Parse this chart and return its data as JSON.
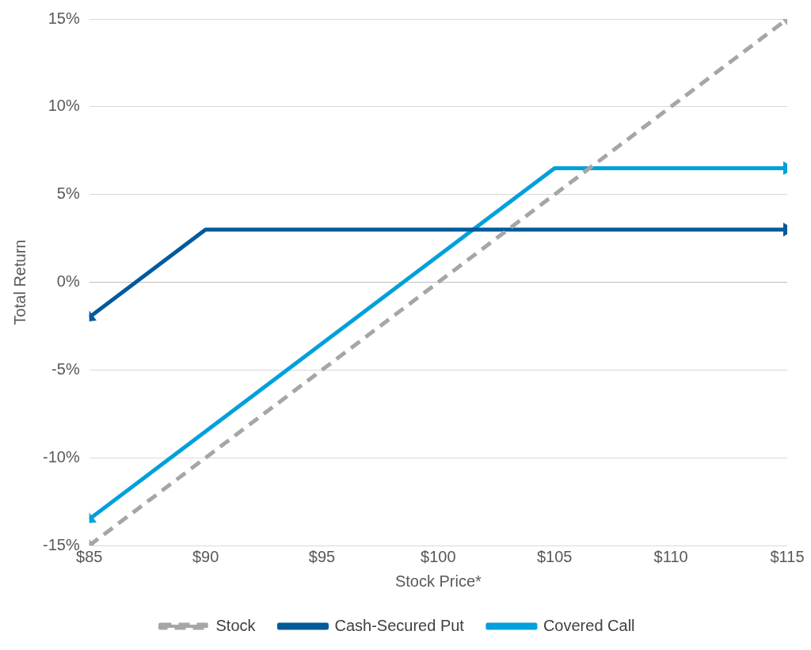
{
  "chart_data": {
    "type": "line",
    "xlabel": "Stock Price*",
    "ylabel": "Total Return",
    "xlim": [
      85,
      115
    ],
    "xticks": [
      {
        "value": 85,
        "label": "$85"
      },
      {
        "value": 90,
        "label": "$90"
      },
      {
        "value": 95,
        "label": "$95"
      },
      {
        "value": 100,
        "label": "$100"
      },
      {
        "value": 105,
        "label": "$105"
      },
      {
        "value": 110,
        "label": "$110"
      },
      {
        "value": 115,
        "label": "$115"
      }
    ],
    "ylim": [
      -15,
      15
    ],
    "yticks": [
      {
        "value": -15,
        "label": "-15%"
      },
      {
        "value": -10,
        "label": "-10%"
      },
      {
        "value": -5,
        "label": "-5%"
      },
      {
        "value": 0,
        "label": "0%"
      },
      {
        "value": 5,
        "label": "5%"
      },
      {
        "value": 10,
        "label": "10%"
      },
      {
        "value": 15,
        "label": "15%"
      }
    ],
    "grid": "y",
    "legend": "bottom",
    "marker": "triangle",
    "series": [
      {
        "name": "Stock",
        "color": "#a6a6a6",
        "line_style": "dashed",
        "x": [
          85,
          115
        ],
        "values": [
          -15,
          15
        ]
      },
      {
        "name": "Cash-Secured Put",
        "color": "#005a9c",
        "line_style": "solid",
        "x": [
          85,
          90,
          115
        ],
        "values": [
          -2,
          3,
          3
        ]
      },
      {
        "name": "Covered Call",
        "color": "#00a0dc",
        "line_style": "solid",
        "x": [
          85,
          105,
          115
        ],
        "values": [
          -13.5,
          6.5,
          6.5
        ]
      }
    ]
  }
}
